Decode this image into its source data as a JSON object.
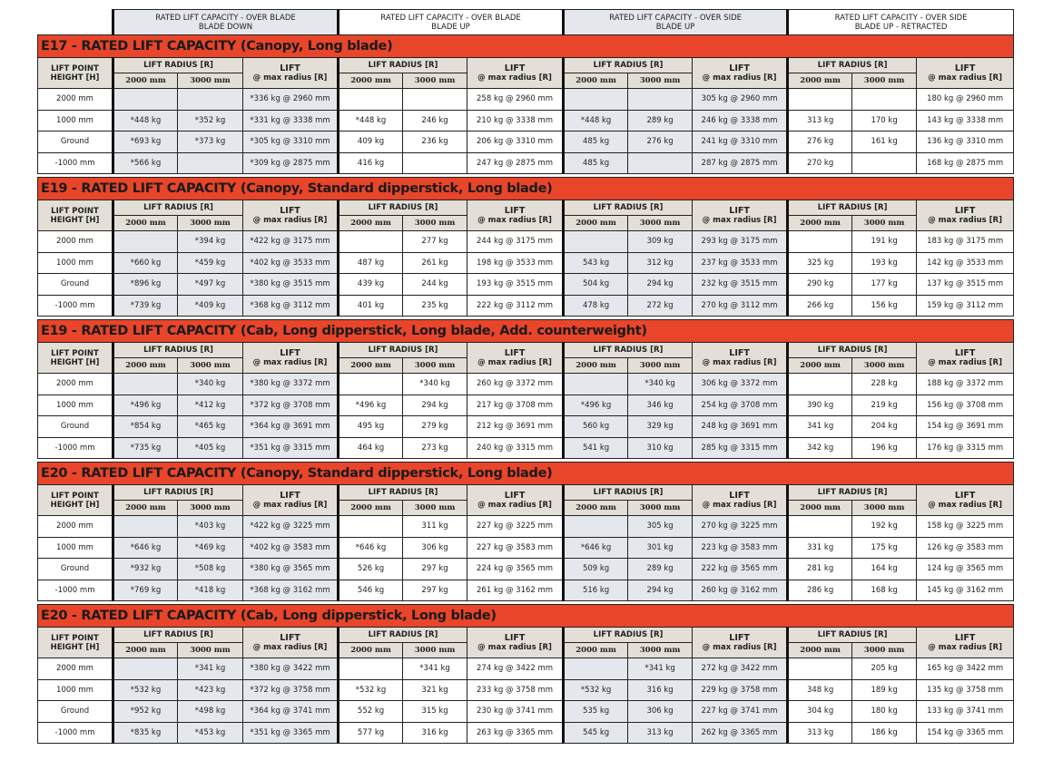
{
  "column_groups": [
    {
      "line1": "RATED LIFT CAPACITY - OVER BLADE",
      "line2": "BLADE DOWN"
    },
    {
      "line1": "RATED LIFT CAPACITY - OVER BLADE",
      "line2": "BLADE UP"
    },
    {
      "line1": "RATED LIFT CAPACITY - OVER SIDE",
      "line2": "BLADE UP"
    },
    {
      "line1": "RATED LIFT CAPACITY - OVER SIDE",
      "line2": "BLADE UP - RETRACTED"
    }
  ],
  "header": {
    "lift_point_line1": "LIFT POINT",
    "lift_point_line2": "HEIGHT [H]",
    "lift_radius": "LIFT RADIUS [R]",
    "r2000": "2000 mm",
    "r3000": "3000 mm",
    "lift": "LIFT",
    "at_max_radius": "@ max radius [R]"
  },
  "colors": {
    "title_bar": "#e8452a",
    "header_bg": "#e3dfd6",
    "shaded_column": "#e4e7eb"
  },
  "sections": [
    {
      "title": "E17 - RATED LIFT CAPACITY (Canopy, Long blade)",
      "rows": [
        {
          "height": "2000 mm",
          "cells": [
            "",
            "",
            "*336 kg @ 2960 mm",
            "",
            "",
            "258 kg @ 2960 mm",
            "",
            "",
            "305 kg @ 2960 mm",
            "",
            "",
            "180 kg @ 2960 mm"
          ]
        },
        {
          "height": "1000 mm",
          "cells": [
            "*448 kg",
            "*352 kg",
            "*331 kg @ 3338 mm",
            "*448 kg",
            "246 kg",
            "210 kg @ 3338 mm",
            "*448 kg",
            "289 kg",
            "246 kg @ 3338 mm",
            "313 kg",
            "170 kg",
            "143 kg @ 3338 mm"
          ]
        },
        {
          "height": "Ground",
          "cells": [
            "*693 kg",
            "*373 kg",
            "*305 kg @ 3310 mm",
            "409 kg",
            "236 kg",
            "206 kg @ 3310 mm",
            "485 kg",
            "276 kg",
            "241 kg @ 3310 mm",
            "276 kg",
            "161 kg",
            "136 kg @ 3310 mm"
          ]
        },
        {
          "height": "-1000 mm",
          "cells": [
            "*566 kg",
            "",
            "*309 kg @ 2875 mm",
            "416 kg",
            "",
            "247 kg @ 2875 mm",
            "485 kg",
            "",
            "287 kg @ 2875 mm",
            "270 kg",
            "",
            "168 kg @ 2875 mm"
          ]
        }
      ]
    },
    {
      "title": "E19 - RATED LIFT CAPACITY (Canopy, Standard dipperstick, Long blade)",
      "rows": [
        {
          "height": "2000 mm",
          "cells": [
            "",
            "*394 kg",
            "*422 kg @ 3175 mm",
            "",
            "277 kg",
            "244 kg @ 3175 mm",
            "",
            "309 kg",
            "293 kg @ 3175 mm",
            "",
            "191 kg",
            "183 kg @ 3175 mm"
          ]
        },
        {
          "height": "1000 mm",
          "cells": [
            "*660 kg",
            "*459 kg",
            "*402 kg @ 3533 mm",
            "487 kg",
            "261 kg",
            "198 kg @ 3533 mm",
            "543 kg",
            "312 kg",
            "237 kg @ 3533 mm",
            "325 kg",
            "193 kg",
            "142 kg @ 3533 mm"
          ]
        },
        {
          "height": "Ground",
          "cells": [
            "*896 kg",
            "*497 kg",
            "*380 kg @ 3515 mm",
            "439 kg",
            "244 kg",
            "193 kg @ 3515 mm",
            "504 kg",
            "294 kg",
            "232 kg @ 3515 mm",
            "290 kg",
            "177 kg",
            "137 kg @ 3515 mm"
          ]
        },
        {
          "height": "-1000 mm",
          "cells": [
            "*739 kg",
            "*409 kg",
            "*368 kg @ 3112 mm",
            "401 kg",
            "235 kg",
            "222 kg @ 3112 mm",
            "478 kg",
            "272 kg",
            "270 kg @ 3112 mm",
            "266 kg",
            "156 kg",
            "159 kg @ 3112 mm"
          ]
        }
      ]
    },
    {
      "title": "E19 - RATED LIFT CAPACITY (Cab, Long dipperstick, Long blade, Add. counterweight)",
      "rows": [
        {
          "height": "2000 mm",
          "cells": [
            "",
            "*340 kg",
            "*380 kg @ 3372 mm",
            "",
            "*340 kg",
            "260 kg @ 3372 mm",
            "",
            "*340 kg",
            "306 kg @ 3372 mm",
            "",
            "228 kg",
            "188 kg @ 3372 mm"
          ]
        },
        {
          "height": "1000 mm",
          "cells": [
            "*496 kg",
            "*412 kg",
            "*372 kg @ 3708 mm",
            "*496 kg",
            "294 kg",
            "217 kg @ 3708 mm",
            "*496 kg",
            "346 kg",
            "254 kg @ 3708 mm",
            "390 kg",
            "219 kg",
            "156 kg @ 3708 mm"
          ]
        },
        {
          "height": "Ground",
          "cells": [
            "*854 kg",
            "*465 kg",
            "*364 kg @ 3691 mm",
            "495 kg",
            "279 kg",
            "212 kg @ 3691 mm",
            "560 kg",
            "329 kg",
            "248 kg @ 3691 mm",
            "341 kg",
            "204 kg",
            "154 kg @ 3691 mm"
          ]
        },
        {
          "height": "-1000 mm",
          "cells": [
            "*735 kg",
            "*405 kg",
            "*351 kg @ 3315 mm",
            "464 kg",
            "273 kg",
            "240 kg @ 3315 mm",
            "541 kg",
            "310 kg",
            "285 kg @ 3315 mm",
            "342 kg",
            "196 kg",
            "176 kg @ 3315 mm"
          ]
        }
      ]
    },
    {
      "title": "E20 - RATED LIFT CAPACITY (Canopy, Standard dipperstick, Long blade)",
      "rows": [
        {
          "height": "2000 mm",
          "cells": [
            "",
            "*403 kg",
            "*422 kg @ 3225 mm",
            "",
            "311 kg",
            "227 kg @ 3225 mm",
            "",
            "305 kg",
            "270 kg @ 3225 mm",
            "",
            "192 kg",
            "158 kg @ 3225 mm"
          ]
        },
        {
          "height": "1000 mm",
          "cells": [
            "*646 kg",
            "*469 kg",
            "*402 kg @ 3583 mm",
            "*646 kg",
            "306 kg",
            "227 kg @ 3583 mm",
            "*646 kg",
            "301 kg",
            "223 kg @ 3583 mm",
            "331 kg",
            "175 kg",
            "126 kg @ 3583 mm"
          ]
        },
        {
          "height": "Ground",
          "cells": [
            "*932 kg",
            "*508 kg",
            "*380 kg @ 3565 mm",
            "526 kg",
            "297 kg",
            "224 kg @ 3565 mm",
            "509 kg",
            "289 kg",
            "222 kg @ 3565 mm",
            "281 kg",
            "164 kg",
            "124 kg @ 3565 mm"
          ]
        },
        {
          "height": "-1000 mm",
          "cells": [
            "*769 kg",
            "*418 kg",
            "*368 kg @ 3162 mm",
            "546 kg",
            "297 kg",
            "261 kg @ 3162 mm",
            "516 kg",
            "294 kg",
            "260 kg @ 3162 mm",
            "286 kg",
            "168 kg",
            "145 kg @ 3162 mm"
          ]
        }
      ]
    },
    {
      "title": "E20 - RATED LIFT CAPACITY (Cab, Long dipperstick, Long blade)",
      "rows": [
        {
          "height": "2000 mm",
          "cells": [
            "",
            "*341 kg",
            "*380 kg @ 3422 mm",
            "",
            "*341 kg",
            "274 kg @ 3422 mm",
            "",
            "*341 kg",
            "272 kg @ 3422 mm",
            "",
            "205 kg",
            "165 kg @ 3422 mm"
          ]
        },
        {
          "height": "1000 mm",
          "cells": [
            "*532 kg",
            "*423 kg",
            "*372 kg @ 3758 mm",
            "*532 kg",
            "321 kg",
            "233 kg @ 3758 mm",
            "*532 kg",
            "316 kg",
            "229 kg @ 3758 mm",
            "348 kg",
            "189 kg",
            "135 kg @ 3758 mm"
          ]
        },
        {
          "height": "Ground",
          "cells": [
            "*952 kg",
            "*498 kg",
            "*364 kg @ 3741 mm",
            "552 kg",
            "315 kg",
            "230 kg @ 3741 mm",
            "535 kg",
            "306 kg",
            "227 kg @ 3741 mm",
            "304 kg",
            "180 kg",
            "133 kg @ 3741 mm"
          ]
        },
        {
          "height": "-1000 mm",
          "cells": [
            "*835 kg",
            "*453 kg",
            "*351 kg @ 3365 mm",
            "577 kg",
            "316 kg",
            "263 kg @ 3365 mm",
            "545 kg",
            "313 kg",
            "262 kg @ 3365 mm",
            "313 kg",
            "186 kg",
            "154 kg @ 3365 mm"
          ]
        }
      ]
    }
  ]
}
